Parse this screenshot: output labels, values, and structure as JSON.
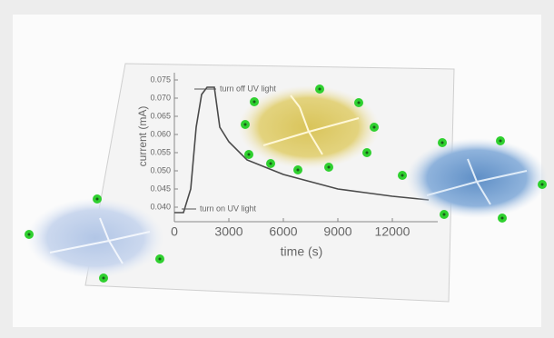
{
  "chart_data": {
    "type": "line",
    "x": [
      0,
      500,
      900,
      1200,
      1500,
      1800,
      2200,
      2500,
      3000,
      4000,
      5000,
      6000,
      7500,
      9000,
      10500,
      12000,
      13000,
      14000
    ],
    "values": [
      0.0385,
      0.0385,
      0.045,
      0.062,
      0.071,
      0.073,
      0.073,
      0.062,
      0.058,
      0.053,
      0.051,
      0.049,
      0.047,
      0.045,
      0.044,
      0.043,
      0.0425,
      0.042
    ],
    "color": "#4a4a4a",
    "xlabel": "time (s)",
    "ylabel": "current (mA)",
    "xlim": [
      0,
      14500
    ],
    "ylim": [
      0.036,
      0.077
    ],
    "xticks": [
      0,
      3000,
      6000,
      9000,
      12000
    ],
    "yticks": [
      {
        "value": 0.04,
        "label": "0.040"
      },
      0.045,
      {
        "value": 0.05,
        "label": "0.050"
      },
      0.055,
      {
        "value": 0.06,
        "label": "0.060"
      },
      0.065,
      {
        "value": 0.07,
        "label": "0.070"
      },
      0.075
    ],
    "annotations": [
      "turn off UV light",
      "turn on UV light"
    ]
  }
}
